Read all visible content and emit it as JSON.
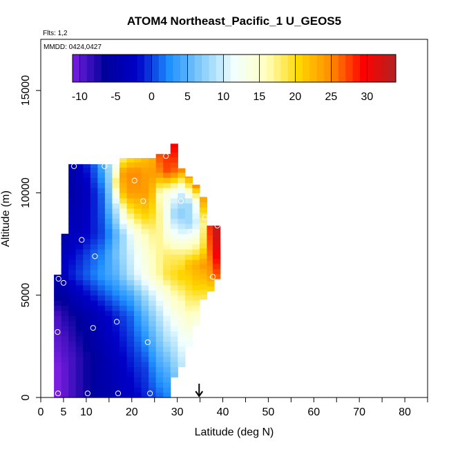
{
  "chart_data": {
    "type": "heatmap",
    "title": "ATOM4 Northeast_Pacific_1 U_GEOS5",
    "annotations": {
      "flights": "Flts: 1,2",
      "dates": "MMDD: 0424,0427"
    },
    "xlabel": "Latitude (deg N)",
    "ylabel": "Altitude (m)",
    "xlim": [
      0,
      85
    ],
    "ylim": [
      0,
      17500
    ],
    "x_ticks": [
      0,
      5,
      10,
      20,
      30,
      40,
      50,
      60,
      70,
      80
    ],
    "x_minor_ticks": [
      15,
      25,
      35,
      45,
      55,
      65,
      75,
      85
    ],
    "y_ticks": [
      0,
      5000,
      10000,
      15000
    ],
    "colorbar": {
      "min": -11,
      "max": 34,
      "ticks": [
        -10,
        -5,
        0,
        5,
        10,
        15,
        20,
        25,
        30
      ],
      "colors": [
        "#7a1fe0",
        "#00009a",
        "#0000c8",
        "#1e90ff",
        "#87cefa",
        "#f2ffff",
        "#ffffc0",
        "#ffd700",
        "#ff8c00",
        "#ff0000",
        "#b22222"
      ]
    },
    "marker": {
      "x": 34.8,
      "label": "arrow"
    },
    "grid": false,
    "curtain": {
      "lat_bin": 1.6,
      "alt_bin": 250,
      "columns": [
        {
          "lat": 3.7,
          "top": 6000,
          "knots": [
            [
              0,
              -11
            ],
            [
              1500,
              -11
            ],
            [
              2500,
              -10
            ],
            [
              4000,
              -9
            ],
            [
              5000,
              -6
            ],
            [
              6000,
              -5
            ]
          ]
        },
        {
          "lat": 5.3,
          "top": 8000,
          "knots": [
            [
              0,
              -10
            ],
            [
              1500,
              -10
            ],
            [
              3000,
              -9
            ],
            [
              4500,
              -7
            ],
            [
              5500,
              -4
            ],
            [
              6500,
              -2
            ],
            [
              8000,
              -5
            ]
          ]
        },
        {
          "lat": 6.9,
          "top": 11400,
          "knots": [
            [
              0,
              -9
            ],
            [
              2000,
              -9
            ],
            [
              4000,
              -7
            ],
            [
              5000,
              -4
            ],
            [
              6000,
              -1
            ],
            [
              7000,
              -2
            ],
            [
              8000,
              -3
            ],
            [
              10000,
              -5
            ],
            [
              11400,
              -5
            ]
          ]
        },
        {
          "lat": 8.5,
          "top": 11400,
          "knots": [
            [
              0,
              -8
            ],
            [
              2000,
              -8
            ],
            [
              4000,
              -6
            ],
            [
              5000,
              -3
            ],
            [
              6000,
              0
            ],
            [
              7000,
              -1
            ],
            [
              8000,
              -3
            ],
            [
              10000,
              -4
            ],
            [
              11400,
              -3
            ]
          ]
        },
        {
          "lat": 10.1,
          "top": 11400,
          "knots": [
            [
              0,
              -7
            ],
            [
              2000,
              -7
            ],
            [
              4000,
              -5
            ],
            [
              5000,
              -2
            ],
            [
              6000,
              1
            ],
            [
              7000,
              0
            ],
            [
              8000,
              -2
            ],
            [
              10000,
              -3
            ],
            [
              11400,
              -1
            ]
          ]
        },
        {
          "lat": 11.7,
          "top": 11400,
          "knots": [
            [
              0,
              -6
            ],
            [
              2000,
              -6
            ],
            [
              4000,
              -4
            ],
            [
              5000,
              -1
            ],
            [
              6000,
              2
            ],
            [
              7000,
              1
            ],
            [
              8000,
              -1
            ],
            [
              10000,
              -1
            ],
            [
              11400,
              1
            ]
          ]
        },
        {
          "lat": 13.3,
          "top": 11400,
          "knots": [
            [
              0,
              -5
            ],
            [
              2000,
              -5
            ],
            [
              4000,
              -3
            ],
            [
              5000,
              0
            ],
            [
              6000,
              3
            ],
            [
              7000,
              2
            ],
            [
              8000,
              0
            ],
            [
              10000,
              1
            ],
            [
              11400,
              4
            ]
          ]
        },
        {
          "lat": 14.9,
          "top": 11400,
          "knots": [
            [
              0,
              -5
            ],
            [
              2000,
              -4
            ],
            [
              4000,
              -2
            ],
            [
              5000,
              1
            ],
            [
              6000,
              4
            ],
            [
              7000,
              4
            ],
            [
              8000,
              2
            ],
            [
              9500,
              5
            ],
            [
              11400,
              8
            ]
          ]
        },
        {
          "lat": 16.5,
          "top": 11400,
          "knots": [
            [
              0,
              -4
            ],
            [
              2000,
              -3
            ],
            [
              4000,
              -1
            ],
            [
              5000,
              2
            ],
            [
              6000,
              5
            ],
            [
              7000,
              6
            ],
            [
              8000,
              5
            ],
            [
              9500,
              10
            ],
            [
              10500,
              18
            ],
            [
              11400,
              13
            ]
          ]
        },
        {
          "lat": 18.1,
          "top": 11700,
          "knots": [
            [
              0,
              -3
            ],
            [
              2000,
              -2
            ],
            [
              4000,
              0
            ],
            [
              5000,
              3
            ],
            [
              6000,
              7
            ],
            [
              7000,
              8
            ],
            [
              8000,
              8
            ],
            [
              9000,
              14
            ],
            [
              10000,
              22
            ],
            [
              11000,
              24
            ],
            [
              11700,
              18
            ]
          ]
        },
        {
          "lat": 19.7,
          "top": 11700,
          "knots": [
            [
              0,
              -3
            ],
            [
              2000,
              -1
            ],
            [
              4000,
              1
            ],
            [
              5000,
              4
            ],
            [
              6000,
              9
            ],
            [
              7000,
              10
            ],
            [
              8000,
              11
            ],
            [
              9000,
              18
            ],
            [
              10000,
              24
            ],
            [
              11000,
              25
            ],
            [
              11700,
              20
            ]
          ]
        },
        {
          "lat": 21.3,
          "top": 11700,
          "knots": [
            [
              0,
              -2
            ],
            [
              2000,
              0
            ],
            [
              4000,
              3
            ],
            [
              5000,
              6
            ],
            [
              6000,
              11
            ],
            [
              7000,
              12
            ],
            [
              8000,
              14
            ],
            [
              9000,
              20
            ],
            [
              10000,
              24
            ],
            [
              11000,
              25
            ],
            [
              11700,
              21
            ]
          ]
        },
        {
          "lat": 22.9,
          "top": 11700,
          "knots": [
            [
              0,
              -1
            ],
            [
              1500,
              0
            ],
            [
              3000,
              3
            ],
            [
              4000,
              5
            ],
            [
              5000,
              8
            ],
            [
              6000,
              13
            ],
            [
              7000,
              14
            ],
            [
              8000,
              16
            ],
            [
              9000,
              21
            ],
            [
              10000,
              24
            ],
            [
              11000,
              24
            ],
            [
              11700,
              22
            ]
          ]
        },
        {
          "lat": 24.5,
          "top": 11700,
          "knots": [
            [
              0,
              0
            ],
            [
              1500,
              2
            ],
            [
              3000,
              5
            ],
            [
              4000,
              7
            ],
            [
              5000,
              10
            ],
            [
              6000,
              15
            ],
            [
              7000,
              16
            ],
            [
              8000,
              17
            ],
            [
              9000,
              20
            ],
            [
              10000,
              22
            ],
            [
              11000,
              24
            ],
            [
              11700,
              23
            ]
          ]
        },
        {
          "lat": 26.1,
          "top": 11900,
          "knots": [
            [
              0,
              1
            ],
            [
              1500,
              4
            ],
            [
              3000,
              7
            ],
            [
              4000,
              9
            ],
            [
              5000,
              12
            ],
            [
              6000,
              17
            ],
            [
              7000,
              17
            ],
            [
              8000,
              17
            ],
            [
              9000,
              17
            ],
            [
              10000,
              16
            ],
            [
              11000,
              25
            ],
            [
              11900,
              27
            ]
          ]
        },
        {
          "lat": 27.7,
          "top": 11900,
          "knots": [
            [
              0,
              2
            ],
            [
              1500,
              5
            ],
            [
              3000,
              9
            ],
            [
              4000,
              11
            ],
            [
              5000,
              14
            ],
            [
              6000,
              19
            ],
            [
              7000,
              18
            ],
            [
              8000,
              14
            ],
            [
              9000,
              12
            ],
            [
              10000,
              14
            ],
            [
              11000,
              27
            ],
            [
              11900,
              28
            ]
          ]
        },
        {
          "lat": 29.3,
          "top": 12400,
          "knots": [
            [
              1000,
              6
            ],
            [
              2000,
              8
            ],
            [
              3000,
              10
            ],
            [
              4000,
              13
            ],
            [
              5000,
              16
            ],
            [
              6000,
              20
            ],
            [
              7000,
              18
            ],
            [
              8000,
              12
            ],
            [
              9000,
              8
            ],
            [
              10000,
              12
            ],
            [
              11000,
              26
            ],
            [
              12400,
              30
            ]
          ]
        },
        {
          "lat": 30.9,
          "top": 11200,
          "knots": [
            [
              1500,
              9
            ],
            [
              3000,
              12
            ],
            [
              4000,
              14
            ],
            [
              5000,
              17
            ],
            [
              6000,
              21
            ],
            [
              7000,
              18
            ],
            [
              8000,
              11
            ],
            [
              9000,
              7
            ],
            [
              10000,
              10
            ],
            [
              11200,
              26
            ]
          ]
        },
        {
          "lat": 32.5,
          "top": 10800,
          "knots": [
            [
              2500,
              11
            ],
            [
              3500,
              14
            ],
            [
              4500,
              17
            ],
            [
              5500,
              20
            ],
            [
              6500,
              22
            ],
            [
              7500,
              15
            ],
            [
              8500,
              8
            ],
            [
              9500,
              8
            ],
            [
              10800,
              24
            ]
          ]
        },
        {
          "lat": 34.1,
          "top": 10400,
          "knots": [
            [
              3500,
              13
            ],
            [
              4500,
              17
            ],
            [
              5500,
              21
            ],
            [
              6500,
              23
            ],
            [
              7500,
              16
            ],
            [
              8500,
              10
            ],
            [
              9500,
              12
            ],
            [
              10400,
              25
            ]
          ]
        },
        {
          "lat": 35.7,
          "top": 9800,
          "knots": [
            [
              4800,
              18
            ],
            [
              5500,
              21
            ],
            [
              6500,
              24
            ],
            [
              7500,
              19
            ],
            [
              8500,
              17
            ],
            [
              9800,
              24
            ]
          ]
        },
        {
          "lat": 37.3,
          "top": 8400,
          "knots": [
            [
              5200,
              20
            ],
            [
              6000,
              24
            ],
            [
              7000,
              26
            ],
            [
              8400,
              28
            ]
          ]
        },
        {
          "lat": 38.6,
          "top": 8400,
          "knots": [
            [
              5800,
              26
            ],
            [
              7000,
              30
            ],
            [
              8400,
              33
            ]
          ]
        }
      ]
    },
    "sample_points": [
      [
        3.8,
        200
      ],
      [
        10.3,
        200
      ],
      [
        17.0,
        200
      ],
      [
        24.0,
        200
      ],
      [
        3.7,
        3200
      ],
      [
        11.5,
        3400
      ],
      [
        16.7,
        3700
      ],
      [
        23.5,
        2700
      ],
      [
        3.9,
        5800
      ],
      [
        5.0,
        5600
      ],
      [
        11.9,
        6900
      ],
      [
        9.0,
        7700
      ],
      [
        4.9,
        9900
      ],
      [
        7.3,
        11300
      ],
      [
        14.0,
        11300
      ],
      [
        20.6,
        10600
      ],
      [
        22.5,
        9600
      ],
      [
        27.5,
        11800
      ],
      [
        30.8,
        9600
      ],
      [
        33.0,
        8100
      ],
      [
        36.1,
        8800
      ],
      [
        37.8,
        5900
      ],
      [
        38.8,
        8400
      ]
    ]
  }
}
